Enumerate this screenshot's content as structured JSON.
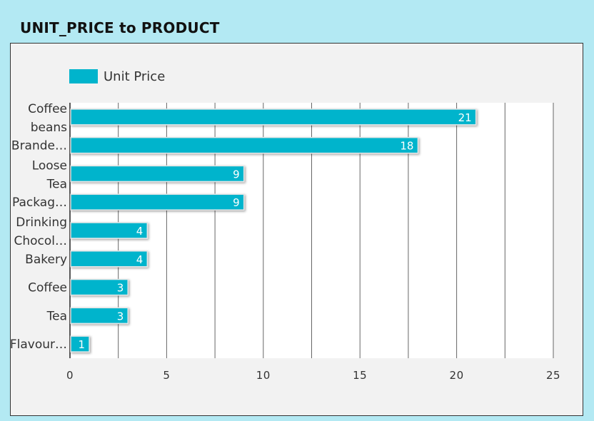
{
  "header": {
    "title": "UNIT_PRICE to PRODUCT"
  },
  "chart_data": {
    "type": "bar",
    "orientation": "horizontal",
    "title": "UNIT_PRICE to PRODUCT",
    "xlabel": "",
    "ylabel": "",
    "categories": [
      "Coffee beans",
      "Brande…",
      "Loose Tea",
      "Packag…",
      "Drinking Chocol…",
      "Bakery",
      "Coffee",
      "Tea",
      "Flavour…"
    ],
    "series": [
      {
        "name": "Unit Price",
        "values": [
          21,
          18,
          9,
          9,
          4,
          4,
          3,
          3,
          1
        ],
        "color": "#00b4cc"
      }
    ],
    "xlim": [
      0,
      25
    ],
    "xticks": [
      "0",
      "5",
      "10",
      "15",
      "20",
      "25"
    ],
    "grid": true,
    "legend_position": "top-left",
    "data_labels": true
  }
}
